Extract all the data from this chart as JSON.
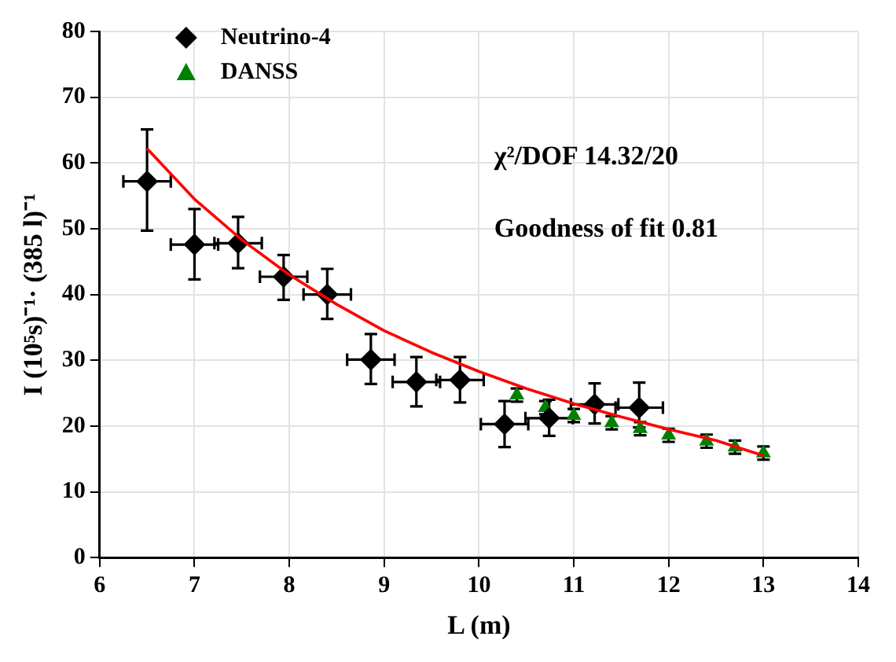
{
  "chart_data": {
    "type": "scatter",
    "xlabel": "L (m)",
    "ylabel": "I (10⁵s)⁻¹· (385 l)⁻¹",
    "xlim": [
      6,
      14
    ],
    "xticks": [
      6,
      7,
      8,
      9,
      10,
      11,
      12,
      13,
      14
    ],
    "ylim": [
      0,
      80
    ],
    "yticks": [
      0,
      10,
      20,
      30,
      40,
      50,
      60,
      70,
      80
    ],
    "grid": true,
    "legend": "top left",
    "annotations": [
      "χ²/DOF 14.32/20",
      "Goodness of fit 0.81"
    ],
    "series": [
      {
        "name": "Neutrino-4",
        "marker": "diamond",
        "color": "#000000",
        "x": [
          6.5,
          7.0,
          7.46,
          7.94,
          8.4,
          8.86,
          9.34,
          9.8,
          10.27,
          10.74,
          11.22,
          11.69
        ],
        "values": [
          57.2,
          47.6,
          47.8,
          42.7,
          40,
          30.1,
          26.7,
          27,
          20.3,
          21.2,
          23.3,
          22.8
        ],
        "errors": [
          [
            49.7,
            65.1
          ],
          [
            42.3,
            53
          ],
          [
            44,
            51.8
          ],
          [
            39.2,
            46
          ],
          [
            36.3,
            43.9
          ],
          [
            26.4,
            34
          ],
          [
            23,
            30.5
          ],
          [
            23.6,
            30.5
          ],
          [
            16.8,
            23.8
          ],
          [
            18.5,
            24
          ],
          [
            20.4,
            26.5
          ],
          [
            19.8,
            26.6
          ]
        ],
        "xerrors": [
          0.25,
          0.25,
          0.25,
          0.25,
          0.25,
          0.25,
          0.25,
          0.25,
          0.25,
          0.25,
          0.25,
          0.25
        ]
      },
      {
        "name": "DANSS",
        "marker": "triangle",
        "color": "#008000",
        "x": [
          10.4,
          10.7,
          11.0,
          11.4,
          11.7,
          12.0,
          12.4,
          12.7,
          13.0
        ],
        "values": [
          24.7,
          22.8,
          21.6,
          20.5,
          19.6,
          18.6,
          17.7,
          16.8,
          15.9
        ],
        "errors": [
          1,
          1,
          1,
          1,
          1,
          1,
          1,
          1,
          1
        ]
      },
      {
        "type": "line",
        "marker": "none",
        "color": "#ff0000",
        "x": [
          6.5,
          7,
          7.5,
          8,
          8.5,
          9,
          9.5,
          10,
          10.5,
          11,
          11.5,
          12,
          12.5,
          13
        ],
        "values": [
          62.2,
          54.5,
          48.3,
          43,
          38.5,
          34.5,
          31.2,
          28.3,
          25.7,
          23.4,
          21.4,
          19.5,
          17.8,
          15.5
        ]
      }
    ]
  }
}
